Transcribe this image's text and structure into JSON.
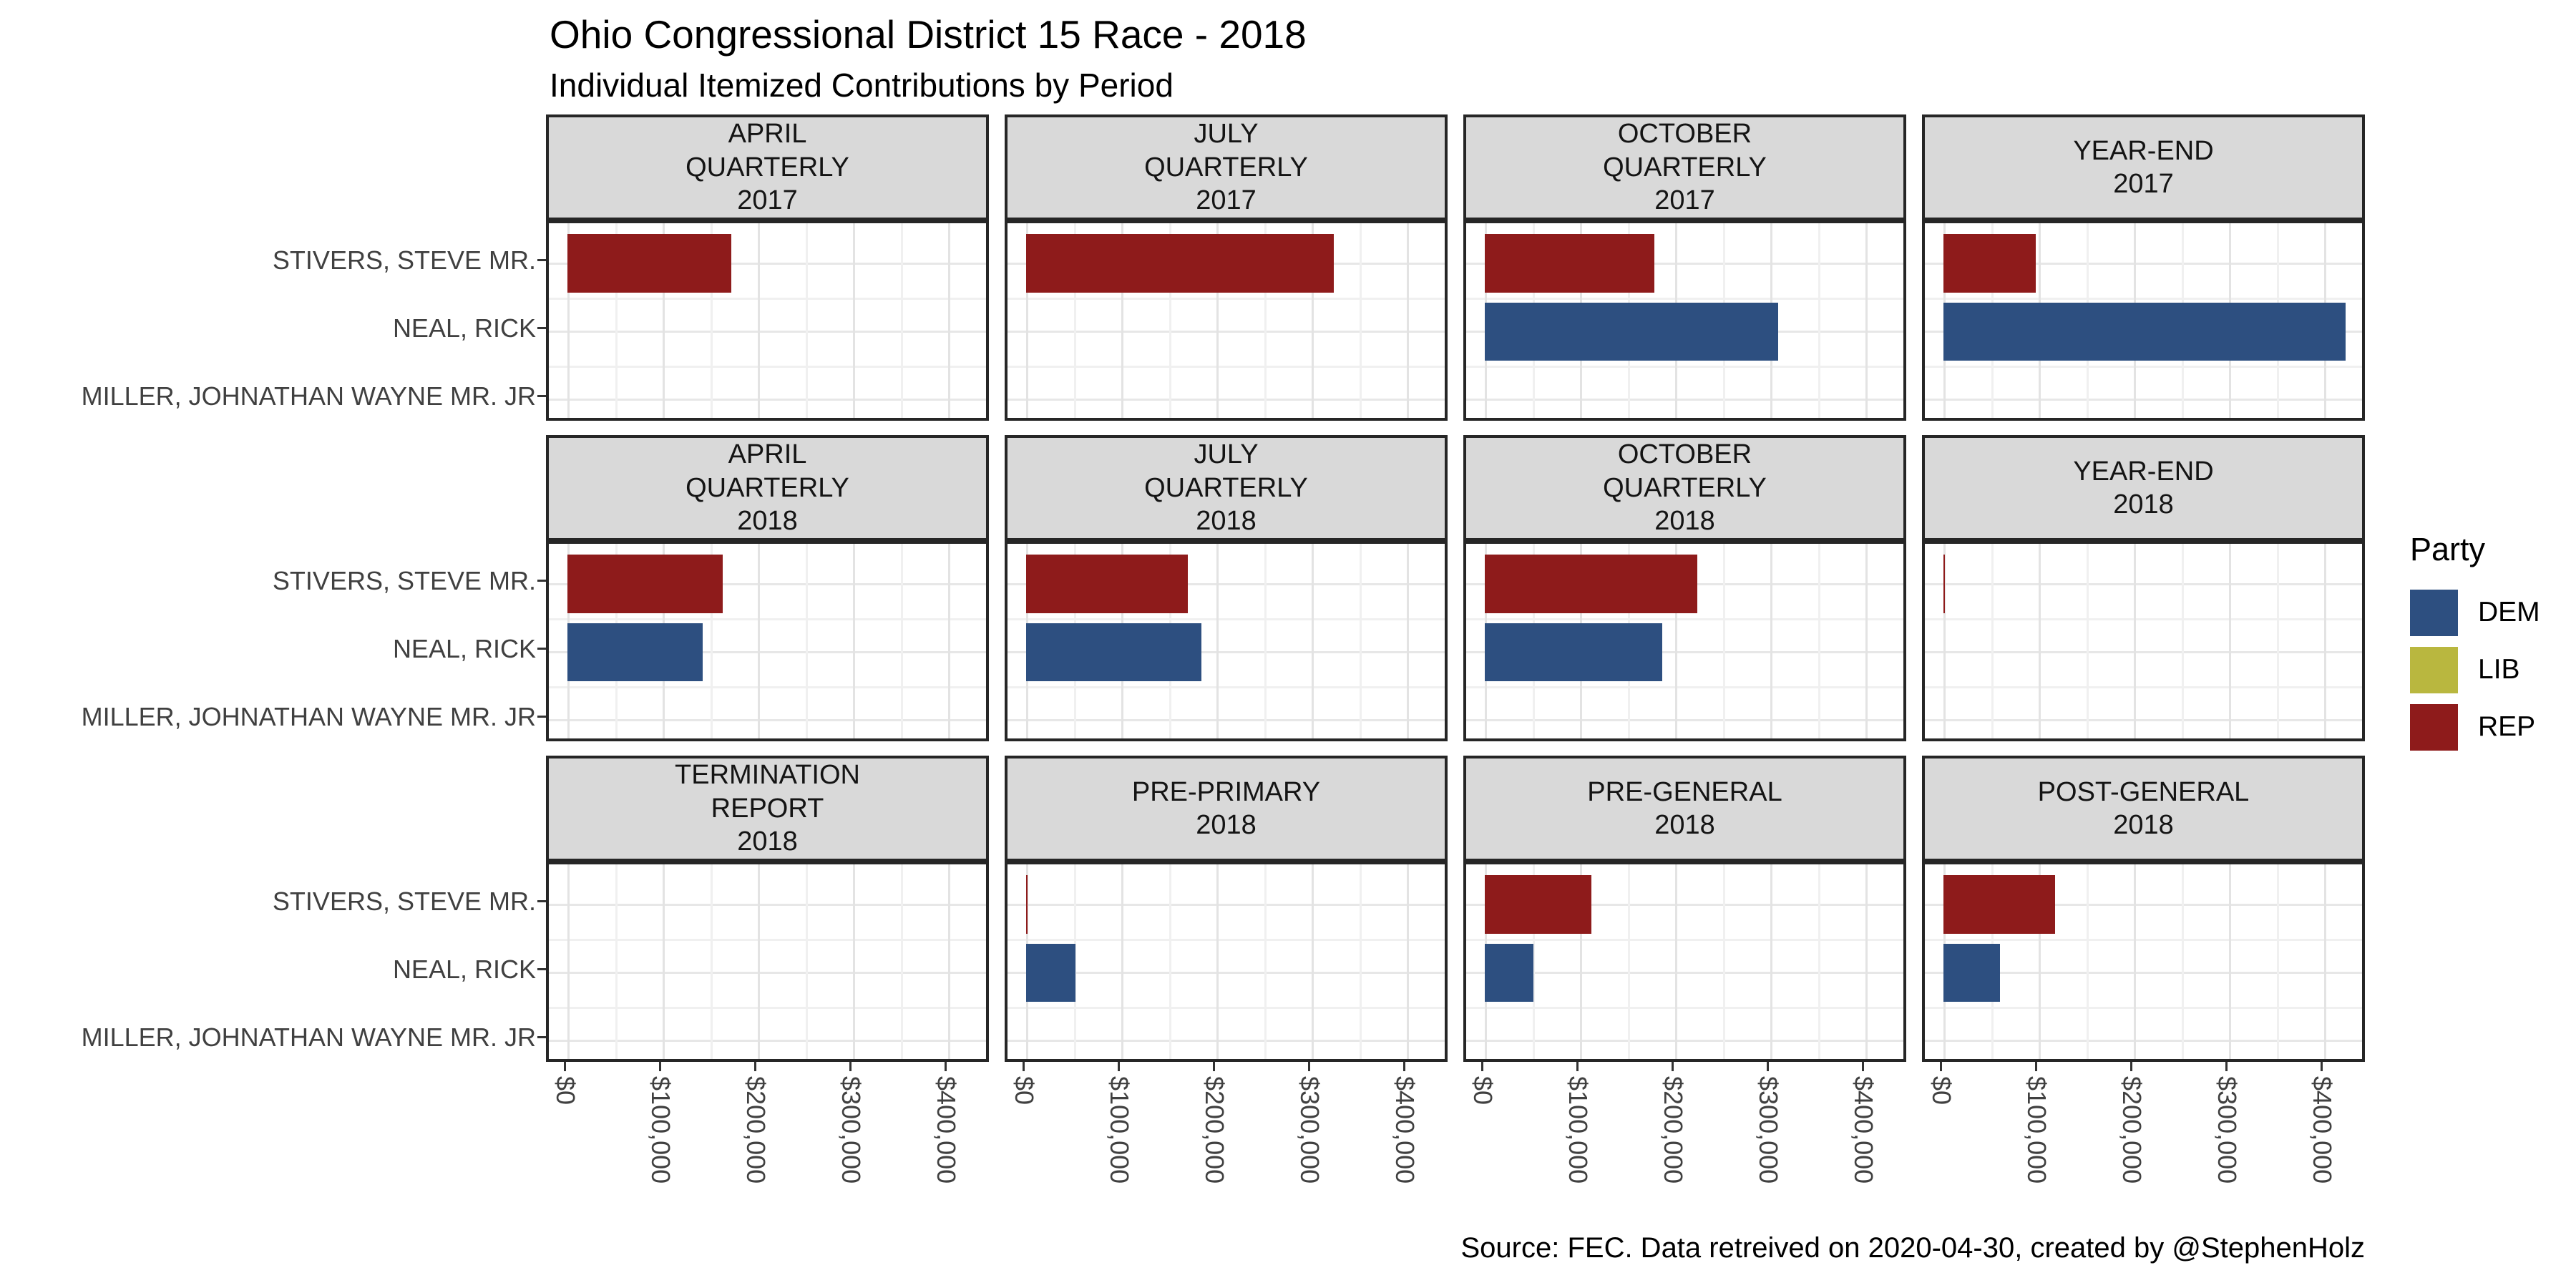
{
  "title": "Ohio Congressional District 15 Race - 2018",
  "subtitle": "Individual Itemized Contributions by Period",
  "caption": "Source: FEC. Data retreived on 2020-04-30, created by @StephenHolz",
  "legend": {
    "title": "Party",
    "entries": [
      {
        "label": "DEM",
        "color": "#2D4F80"
      },
      {
        "label": "LIB",
        "color": "#B9B73F"
      },
      {
        "label": "REP",
        "color": "#8E1B1B"
      }
    ]
  },
  "chart_data": {
    "type": "bar",
    "orientation": "horizontal",
    "title": "Ohio Congressional District 15 Race - 2018",
    "subtitle": "Individual Itemized Contributions by Period",
    "caption": "Source: FEC. Data retreived on 2020-04-30, created by @StephenHolz",
    "candidates": [
      "STIVERS, STEVE MR.",
      "NEAL, RICK",
      "MILLER, JOHNATHAN WAYNE MR. JR"
    ],
    "candidate_parties": [
      "REP",
      "DEM",
      "LIB"
    ],
    "party_colors": {
      "DEM": "#2D4F80",
      "LIB": "#B9B73F",
      "REP": "#8E1B1B"
    },
    "x_tick_labels": [
      "$0",
      "$100,000",
      "$200,000",
      "$300,000",
      "$400,000"
    ],
    "x_tick_values": [
      0,
      100000,
      200000,
      300000,
      400000
    ],
    "xlim": [
      0,
      445000
    ],
    "grid": true,
    "legend_position": "right",
    "facet_layout": {
      "rows": 3,
      "cols": 4
    },
    "facets": [
      {
        "label_lines": [
          "APRIL",
          "QUARTERLY",
          "2017"
        ],
        "values": [
          172000,
          0,
          0
        ]
      },
      {
        "label_lines": [
          "JULY",
          "QUARTERLY",
          "2017"
        ],
        "values": [
          323000,
          0,
          0
        ]
      },
      {
        "label_lines": [
          "OCTOBER",
          "QUARTERLY",
          "2017"
        ],
        "values": [
          178000,
          308000,
          0
        ]
      },
      {
        "label_lines": [
          "YEAR-END",
          "2017"
        ],
        "values": [
          97000,
          422000,
          0
        ]
      },
      {
        "label_lines": [
          "APRIL",
          "QUARTERLY",
          "2018"
        ],
        "values": [
          163000,
          142000,
          0
        ]
      },
      {
        "label_lines": [
          "JULY",
          "QUARTERLY",
          "2018"
        ],
        "values": [
          170000,
          184000,
          0
        ]
      },
      {
        "label_lines": [
          "OCTOBER",
          "QUARTERLY",
          "2018"
        ],
        "values": [
          223000,
          186000,
          0
        ]
      },
      {
        "label_lines": [
          "YEAR-END",
          "2018"
        ],
        "values": [
          1500,
          0,
          0
        ]
      },
      {
        "label_lines": [
          "TERMINATION",
          "REPORT",
          "2018"
        ],
        "values": [
          0,
          0,
          0
        ]
      },
      {
        "label_lines": [
          "PRE-PRIMARY",
          "2018"
        ],
        "values": [
          1500,
          52000,
          0
        ]
      },
      {
        "label_lines": [
          "PRE-GENERAL",
          "2018"
        ],
        "values": [
          112000,
          51000,
          0
        ]
      },
      {
        "label_lines": [
          "POST-GENERAL",
          "2018"
        ],
        "values": [
          117000,
          59000,
          0
        ]
      }
    ]
  }
}
